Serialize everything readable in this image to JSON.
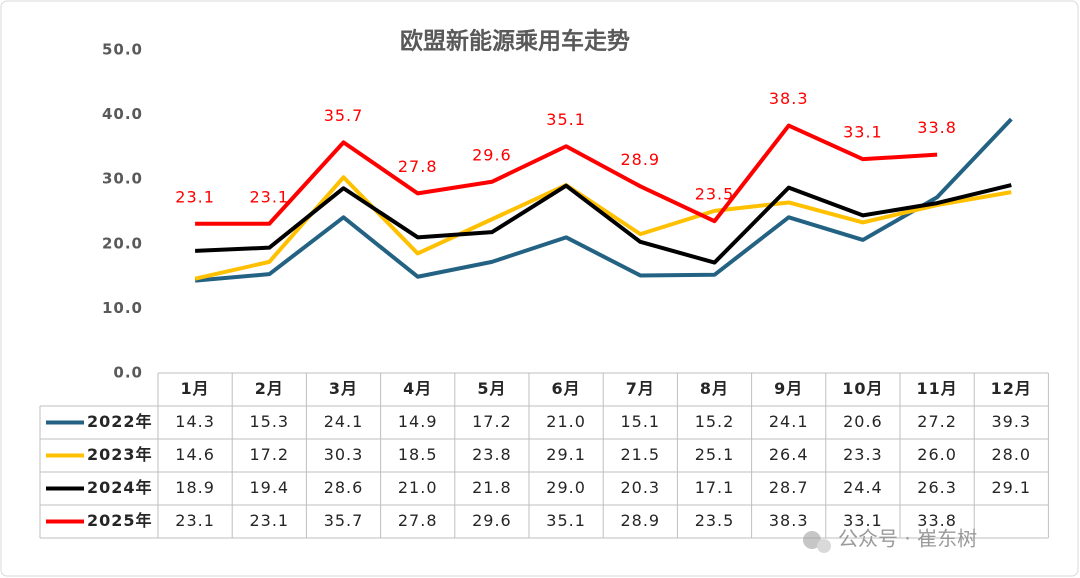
{
  "chart_data": {
    "type": "line",
    "title": "欧盟新能源乘用车走势",
    "categories": [
      "1月",
      "2月",
      "3月",
      "4月",
      "5月",
      "6月",
      "7月",
      "8月",
      "9月",
      "10月",
      "11月",
      "12月"
    ],
    "series": [
      {
        "name": "2022年",
        "color": "#236283",
        "values": [
          14.3,
          15.3,
          24.1,
          14.9,
          17.2,
          21.0,
          15.1,
          15.2,
          24.1,
          20.6,
          27.2,
          39.3
        ],
        "value_labels": [
          "14.3",
          "15.3",
          "24.1",
          "14.9",
          "17.2",
          "21.0",
          "15.1",
          "15.2",
          "24.1",
          "20.6",
          "27.2",
          "39.3"
        ]
      },
      {
        "name": "2023年",
        "color": "#ffc000",
        "values": [
          14.6,
          17.2,
          30.3,
          18.5,
          23.8,
          29.1,
          21.5,
          25.1,
          26.4,
          23.3,
          26.0,
          28.0
        ],
        "value_labels": [
          "14.6",
          "17.2",
          "30.3",
          "18.5",
          "23.8",
          "29.1",
          "21.5",
          "25.1",
          "26.4",
          "23.3",
          "26.0",
          "28.0"
        ]
      },
      {
        "name": "2024年",
        "color": "#000000",
        "values": [
          18.9,
          19.4,
          28.6,
          21.0,
          21.8,
          29.0,
          20.3,
          17.1,
          28.7,
          24.4,
          26.3,
          29.1
        ],
        "value_labels": [
          "18.9",
          "19.4",
          "28.6",
          "21.0",
          "21.8",
          "29.0",
          "20.3",
          "17.1",
          "28.7",
          "24.4",
          "26.3",
          "29.1"
        ]
      },
      {
        "name": "2025年",
        "color": "#ff0000",
        "values": [
          23.1,
          23.1,
          35.7,
          27.8,
          29.6,
          35.1,
          28.9,
          23.5,
          38.3,
          33.1,
          33.8,
          null
        ],
        "value_labels": [
          "23.1",
          "23.1",
          "35.7",
          "27.8",
          "29.6",
          "35.1",
          "28.9",
          "23.5",
          "38.3",
          "33.1",
          "33.8",
          null
        ],
        "data_labels": true
      }
    ],
    "ylim": [
      0,
      50
    ],
    "yticks": [
      {
        "value": 0,
        "label": "0.0"
      },
      {
        "value": 10,
        "label": "10.0"
      },
      {
        "value": 20,
        "label": "20.0"
      },
      {
        "value": 30,
        "label": "30.0"
      },
      {
        "value": 40,
        "label": "40.0"
      },
      {
        "value": 50,
        "label": "50.0"
      }
    ],
    "grid": false,
    "watermark": "公众号 · 崔东树"
  }
}
